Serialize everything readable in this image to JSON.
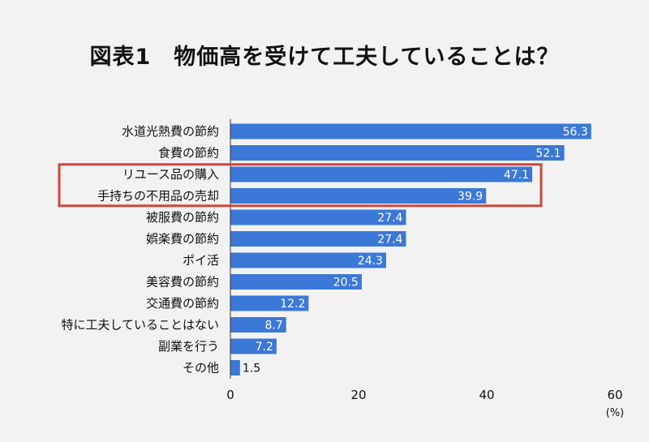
{
  "chart_data": {
    "type": "bar",
    "orientation": "horizontal",
    "title": "図表1　物価高を受けて工夫していることは？",
    "categories": [
      "水道光熱費の節約",
      "食費の節約",
      "リユース品の購入",
      "手持ちの不用品の売却",
      "被服費の節約",
      "娯楽費の節約",
      "ポイ活",
      "美容費の節約",
      "交通費の節約",
      "特に工夫していることはない",
      "副業を行う",
      "その他"
    ],
    "values": [
      56.3,
      52.1,
      47.1,
      39.9,
      27.4,
      27.4,
      24.3,
      20.5,
      12.2,
      8.7,
      7.2,
      1.5
    ],
    "value_labels": [
      "56.3",
      "52.1",
      "47.1",
      "39.9",
      "27.4",
      "27.4",
      "24.3",
      "20.5",
      "12.2",
      "8.7",
      "7.2",
      "1.5"
    ],
    "xlim": [
      0,
      60
    ],
    "xticks": [
      0,
      20,
      40,
      60
    ],
    "xtick_labels": [
      "0",
      "20",
      "40",
      "60"
    ],
    "unit_label": "(%)",
    "highlighted_categories": [
      "リユース品の購入",
      "手持ちの不用品の売却"
    ],
    "colors": {
      "bar": "#3b78d8",
      "highlight_box": "#d0473b",
      "axis": "#333333",
      "background": "#f2f2f2",
      "value_text_inside": "#ffffff",
      "value_text_outside": "#111111"
    },
    "grid": false,
    "legend": "none"
  }
}
